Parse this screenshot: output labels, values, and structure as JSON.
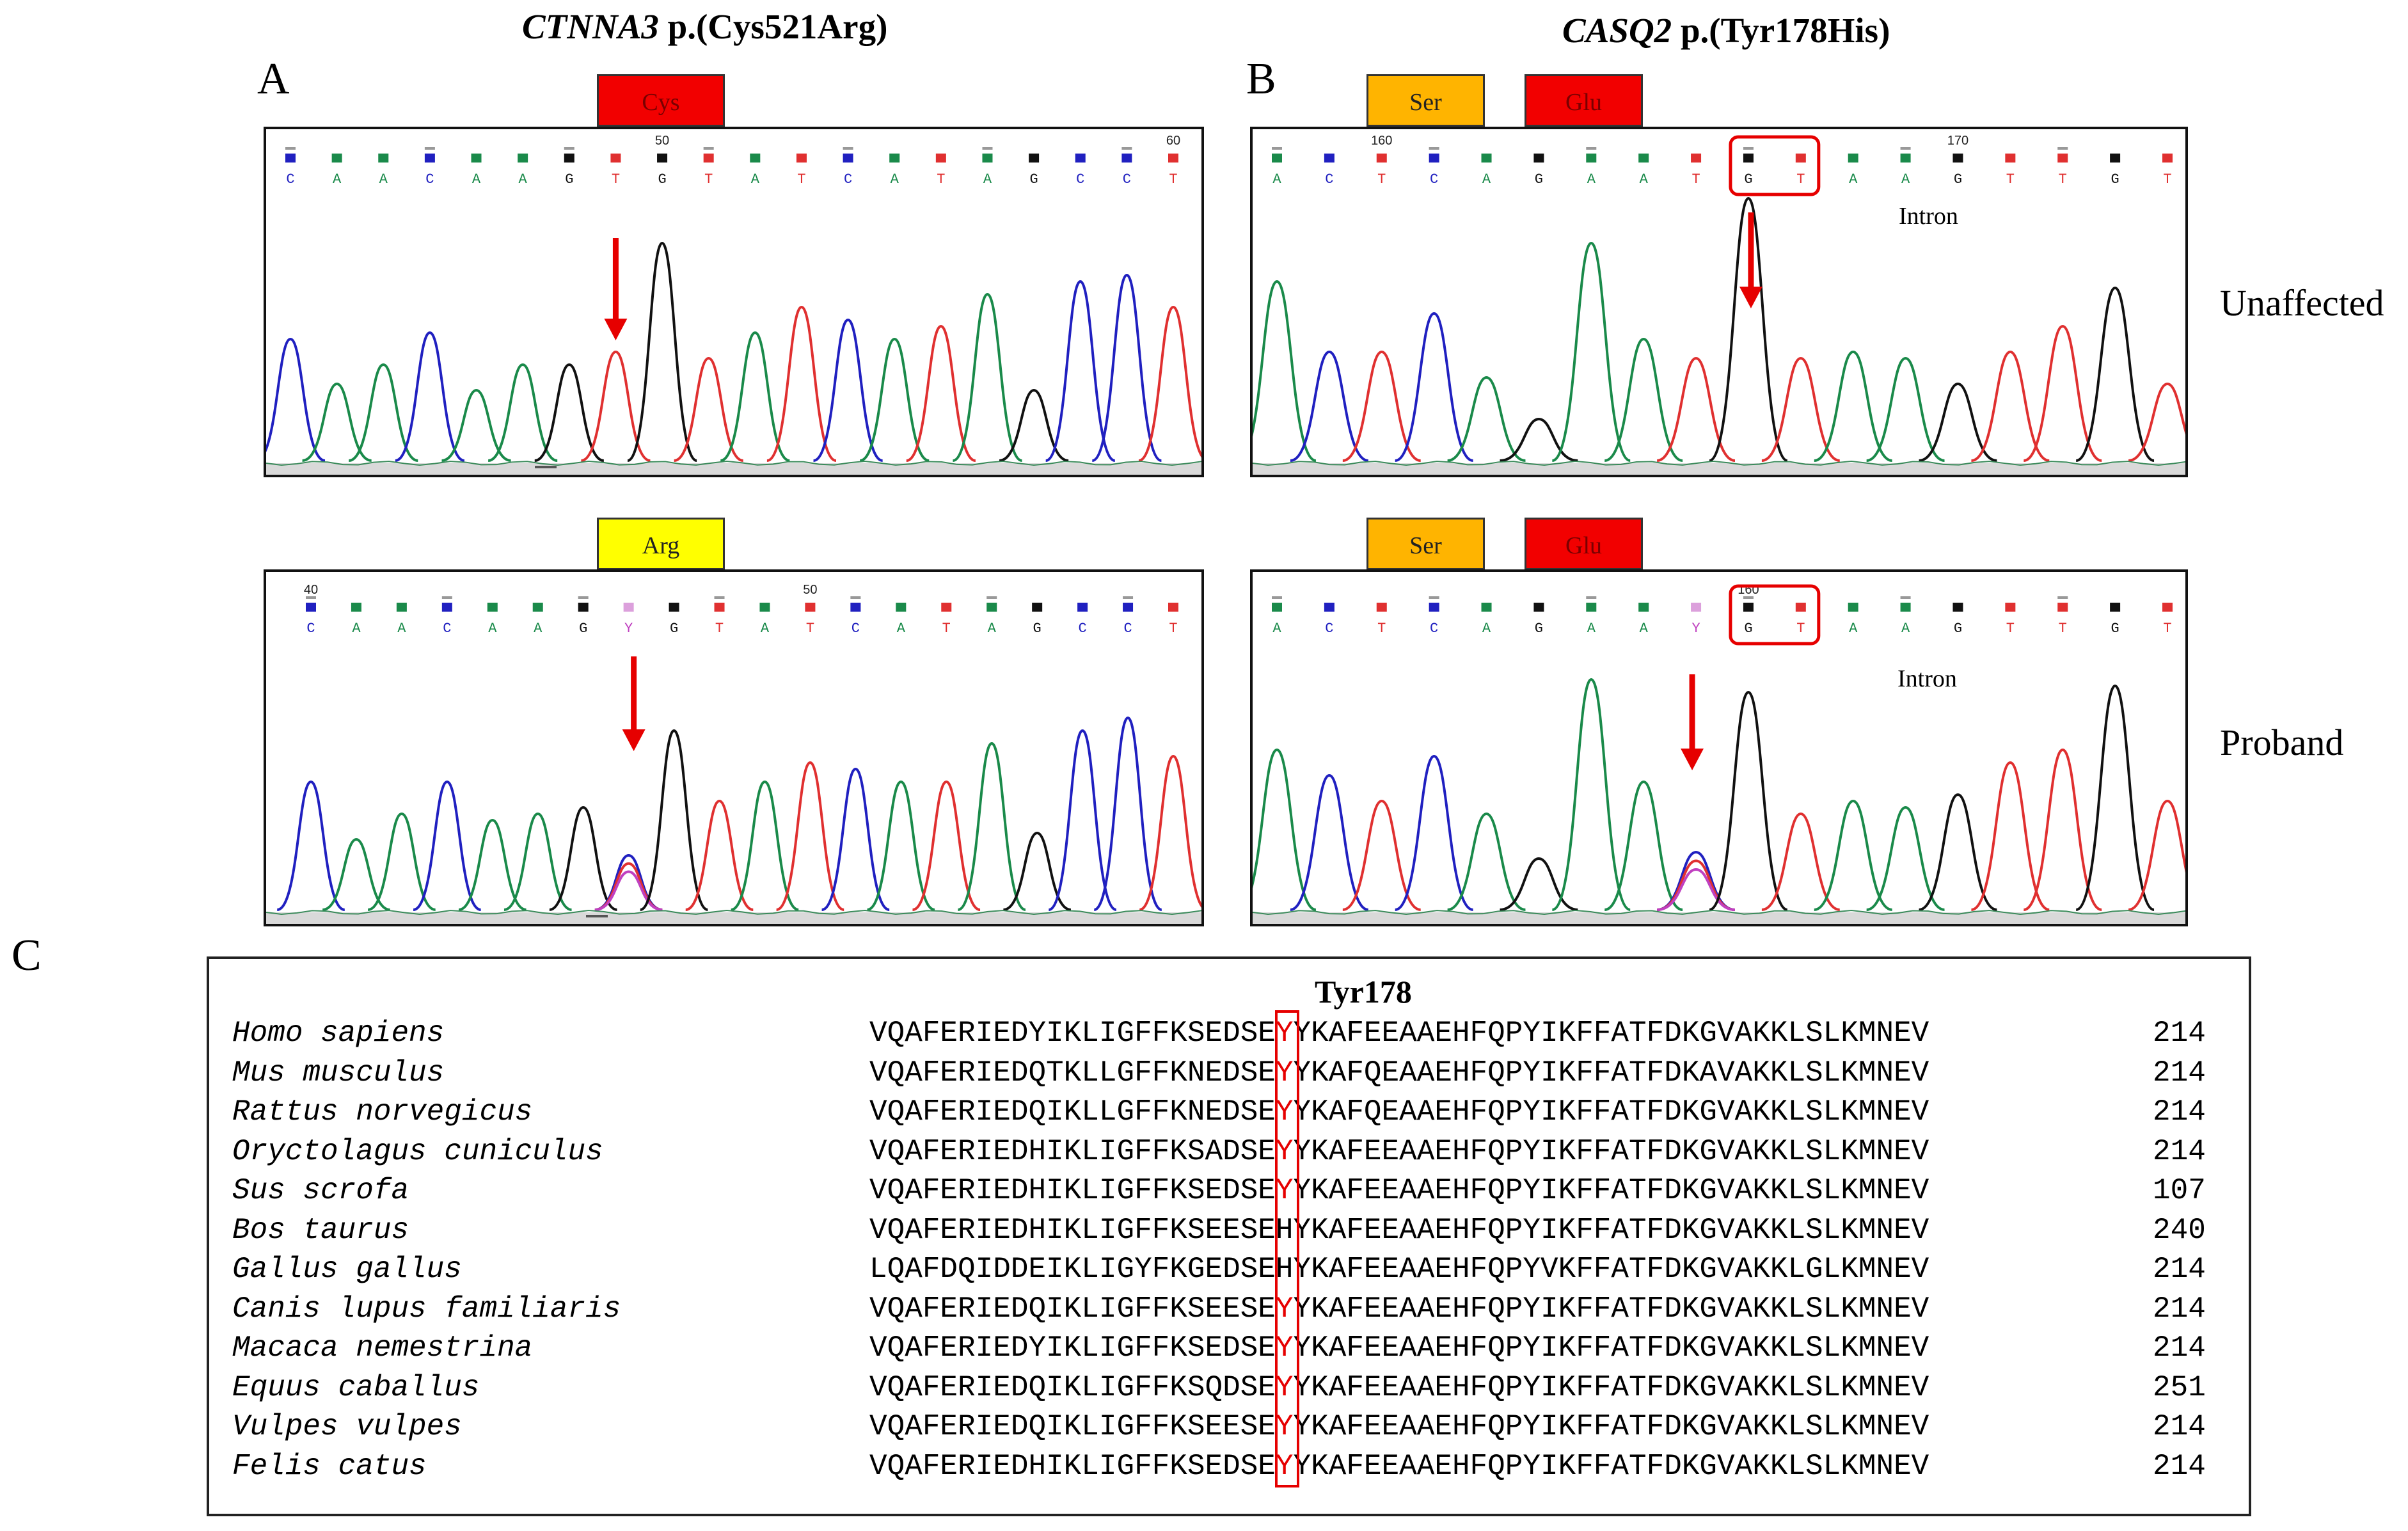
{
  "panels": {
    "a": {
      "letter": "A",
      "gene": "CTNNA3",
      "variant": " p.(Cys521Arg)",
      "top_tag": "Cys",
      "bottom_tag": "Arg",
      "top_bases": [
        "C",
        "A",
        "A",
        "C",
        "A",
        "A",
        "G",
        "T",
        "G",
        "T",
        "A",
        "T",
        "C",
        "A",
        "T",
        "A",
        "G",
        "C",
        "C",
        "T"
      ],
      "top_markers": [
        "50",
        "60"
      ],
      "bottom_bases": [
        "C",
        "A",
        "A",
        "C",
        "A",
        "A",
        "G",
        "Y",
        "G",
        "T",
        "A",
        "T",
        "C",
        "A",
        "T",
        "A",
        "G",
        "C",
        "C",
        "T"
      ],
      "bottom_markers": [
        "40",
        "50"
      ]
    },
    "b": {
      "letter": "B",
      "gene": "CASQ2",
      "variant": " p.(Tyr178His)",
      "tag1": "Ser",
      "tag2": "Glu",
      "top_bases": [
        "A",
        "C",
        "T",
        "C",
        "A",
        "G",
        "A",
        "A",
        "T",
        "G",
        "T",
        "A",
        "A",
        "G",
        "T",
        "T",
        "G",
        "T"
      ],
      "top_markers": [
        "160",
        "170"
      ],
      "bottom_bases": [
        "A",
        "C",
        "T",
        "C",
        "A",
        "G",
        "A",
        "A",
        "Y",
        "G",
        "T",
        "A",
        "A",
        "G",
        "T",
        "T",
        "G",
        "T"
      ],
      "bottom_markers": [
        "160"
      ],
      "intron_label": "Intron"
    },
    "c": {
      "letter": "C"
    }
  },
  "row_labels": {
    "unaffected": "Unaffected",
    "proband": "Proband"
  },
  "alignment": {
    "highlight_label": "Tyr178",
    "rows": [
      {
        "species": "Homo sapiens",
        "pre": "VQAFERIEDYIKLIGFFKSEDSE",
        "aa": "Y",
        "post": "YKAFEEAAEHFQPYIKFFATFDKGVAKKLSLKMNEV",
        "num": "214",
        "hl": true
      },
      {
        "species": "Mus musculus",
        "pre": "VQAFERIEDQTKLLGFFKNEDSE",
        "aa": "Y",
        "post": "YKAFQEAAEHFQPYIKFFATFDKAVAKKLSLKMNEV",
        "num": "214",
        "hl": true
      },
      {
        "species": "Rattus norvegicus",
        "pre": "VQAFERIEDQIKLLGFFKNEDSE",
        "aa": "Y",
        "post": "YKAFQEAAEHFQPYIKFFATFDKGVAKKLSLKMNEV",
        "num": "214",
        "hl": true
      },
      {
        "species": "Oryctolagus cuniculus",
        "pre": "VQAFERIEDHIKLIGFFKSADSE",
        "aa": "Y",
        "post": "YKAFEEAAEHFQPYIKFFATFDKGVAKKLSLKMNEV",
        "num": "214",
        "hl": true
      },
      {
        "species": "Sus scrofa",
        "pre": "VQAFERIEDHIKLIGFFKSEDSE",
        "aa": "Y",
        "post": "YKAFEEAAEHFQPYIKFFATFDKGVAKKLSLKMNEV",
        "num": "107",
        "hl": true
      },
      {
        "species": "Bos taurus",
        "pre": "VQAFERIEDHIKLIGFFKSEESE",
        "aa": "H",
        "post": "YKAFEEAAEHFQPYIKFFATFDKGVAKKLSLKMNEV",
        "num": "240",
        "hl": false
      },
      {
        "species": "Gallus gallus",
        "pre": "LQAFDQIDDEIKLIGYFKGEDSE",
        "aa": "H",
        "post": "YKAFEEAAEHFQPYVKFFATFDKGVAKKLGLKMNEV",
        "num": "214",
        "hl": false
      },
      {
        "species": "Canis lupus familiaris",
        "pre": "VQAFERIEDQIKLIGFFKSEESE",
        "aa": "Y",
        "post": "YKAFEEAAEHFQPYIKFFATFDKGVAKKLSLKMNEV",
        "num": "214",
        "hl": true
      },
      {
        "species": "Macaca nemestrina",
        "pre": "VQAFERIEDYIKLIGFFKSEDSE",
        "aa": "Y",
        "post": "YKAFEEAAEHFQPYIKFFATFDKGVAKKLSLKMNEV",
        "num": "214",
        "hl": true
      },
      {
        "species": "Equus caballus",
        "pre": "VQAFERIEDQIKLIGFFKSQDSE",
        "aa": "Y",
        "post": "YKAFEEAAEHFQPYIKFFATFDKGVAKKLSLKMNEV",
        "num": "251",
        "hl": true
      },
      {
        "species": "Vulpes vulpes",
        "pre": "VQAFERIEDQIKLIGFFKSEESE",
        "aa": "Y",
        "post": "YKAFEEAAEHFQPYIKFFATFDKGVAKKLSLKMNEV",
        "num": "214",
        "hl": true
      },
      {
        "species": "Felis catus",
        "pre": "VQAFERIEDHIKLIGFFKSEDSE",
        "aa": "Y",
        "post": "YKAFEEAAEHFQPYIKFFATFDKGVAKKLSLKMNEV",
        "num": "214",
        "hl": true
      }
    ]
  },
  "colors": {
    "A": "#1a8a4a",
    "C": "#2020c0",
    "G": "#111111",
    "T": "#e03030",
    "Y": "#c040c0",
    "highlight": "#e60000"
  }
}
